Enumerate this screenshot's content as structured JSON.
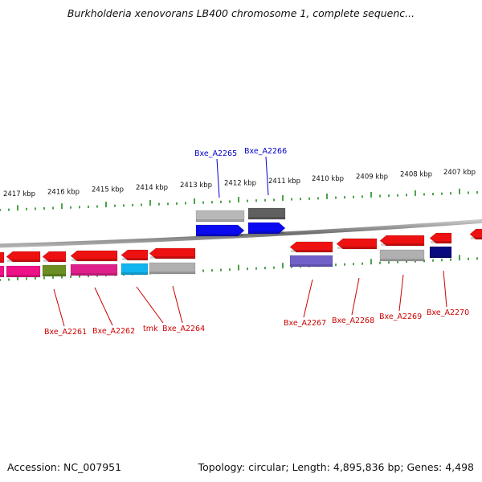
{
  "title": "Burkholderia xenovorans LB400 chromosome 1, complete sequenc...",
  "footer": {
    "accession": "Accession: NC_007951",
    "summary": "Topology: circular; Length: 4,895,836 bp; Genes: 4,498"
  },
  "colors": {
    "backbone": "#8a8a8a",
    "tick": "#1f8a1f",
    "label_top": "#0000cc",
    "label_bottom": "#cc0000"
  },
  "kbp_labels": [
    "2417 kbp",
    "2416 kbp",
    "2415 kbp",
    "2414 kbp",
    "2413 kbp",
    "2412 kbp",
    "2411 kbp",
    "2410 kbp",
    "2409 kbp",
    "2408 kbp",
    "2407 kbp"
  ],
  "top_genes": [
    {
      "label": "Bxe_A2265",
      "color": "#0a0af0",
      "cog": "#b8b8b8"
    },
    {
      "label": "Bxe_A2266",
      "color": "#0a0af0",
      "cog": "#606060"
    }
  ],
  "bottom_genes": [
    {
      "label": "",
      "color": "#ee1111",
      "cog": "#ee1188"
    },
    {
      "label": "Bxe_A2261",
      "color": "#ee1111",
      "cog": "#ee1188"
    },
    {
      "label": "",
      "color": "#ee1111",
      "cog": "#6b8e23"
    },
    {
      "label": "Bxe_A2262",
      "color": "#ee1111",
      "cog": "#e0208a"
    },
    {
      "label": "tmk",
      "color": "#ee1111",
      "cog": "#11b4ee"
    },
    {
      "label": "Bxe_A2264",
      "color": "#ee1111",
      "cog": "#b0b0b0"
    },
    {
      "label": "Bxe_A2267",
      "color": "#ee1111",
      "cog": "#7060c8"
    },
    {
      "label": "Bxe_A2268",
      "color": "#ee1111",
      "cog": ""
    },
    {
      "label": "Bxe_A2269",
      "color": "#ee1111",
      "cog": "#b0b0b0"
    },
    {
      "label": "Bxe_A2270",
      "color": "#ee1111",
      "cog": "#0a0a80"
    },
    {
      "label": "",
      "color": "#ee1111",
      "cog": ""
    }
  ]
}
